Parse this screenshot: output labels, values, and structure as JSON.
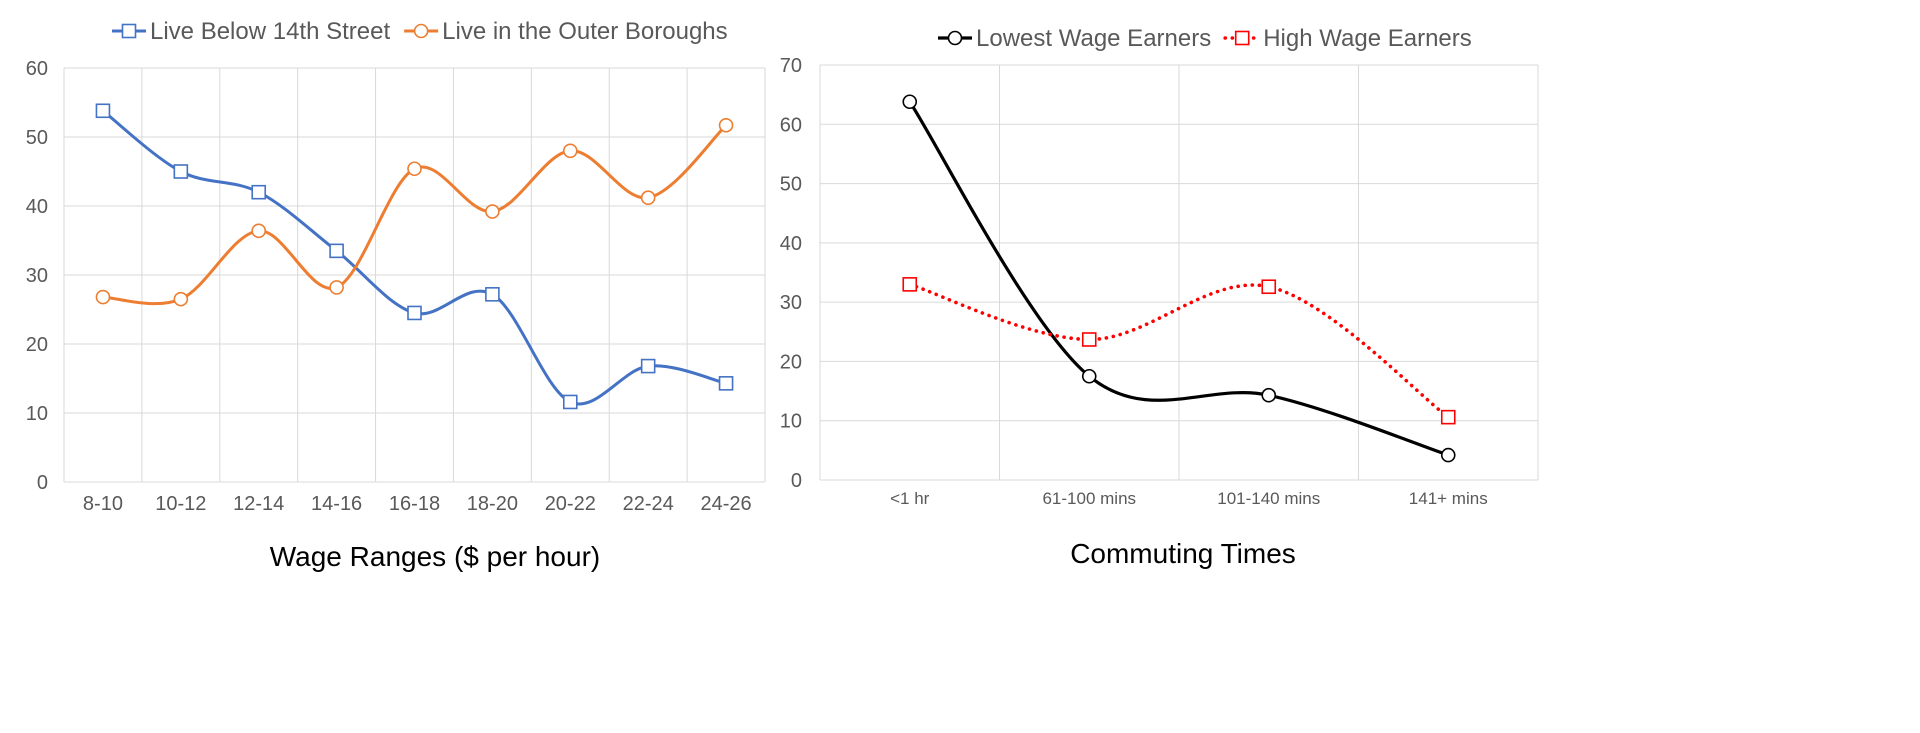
{
  "chart_data": [
    {
      "type": "line",
      "xlabel": "Wage Ranges ($ per hour)",
      "ylabel": "",
      "ylim": [
        0,
        60
      ],
      "yticks": [
        0,
        10,
        20,
        30,
        40,
        50,
        60
      ],
      "grid": true,
      "legend_position": "top",
      "smooth": true,
      "categories": [
        "8-10",
        "10-12",
        "12-14",
        "14-16",
        "16-18",
        "18-20",
        "20-22",
        "22-24",
        "24-26"
      ],
      "series": [
        {
          "name": "Live Below 14th Street",
          "color": "#4472c4",
          "marker": "square",
          "dash": "solid",
          "values": [
            53.8,
            45,
            42,
            33.5,
            24.5,
            27.2,
            11.6,
            16.8,
            14.3
          ]
        },
        {
          "name": "Live in the Outer Boroughs",
          "color": "#ed7d31",
          "marker": "circle",
          "dash": "solid",
          "values": [
            26.8,
            26.5,
            36.4,
            28.2,
            45.4,
            39.2,
            48,
            41.2,
            51.7
          ]
        }
      ]
    },
    {
      "type": "line",
      "xlabel": "Commuting Times",
      "ylabel": "",
      "ylim": [
        0,
        70
      ],
      "yticks": [
        0,
        10,
        20,
        30,
        40,
        50,
        60,
        70
      ],
      "grid": true,
      "legend_position": "top",
      "smooth": true,
      "categories": [
        "<1 hr",
        "61-100 mins",
        "101-140 mins",
        "141+ mins"
      ],
      "series": [
        {
          "name": "Lowest Wage Earners",
          "color": "#000000",
          "marker": "circle",
          "dash": "solid",
          "values": [
            63.8,
            17.5,
            14.3,
            4.2
          ]
        },
        {
          "name": "High Wage Earners",
          "color": "#ff0000",
          "marker": "square",
          "dash": "dotted",
          "values": [
            33,
            23.7,
            32.6,
            10.6
          ]
        }
      ]
    }
  ]
}
